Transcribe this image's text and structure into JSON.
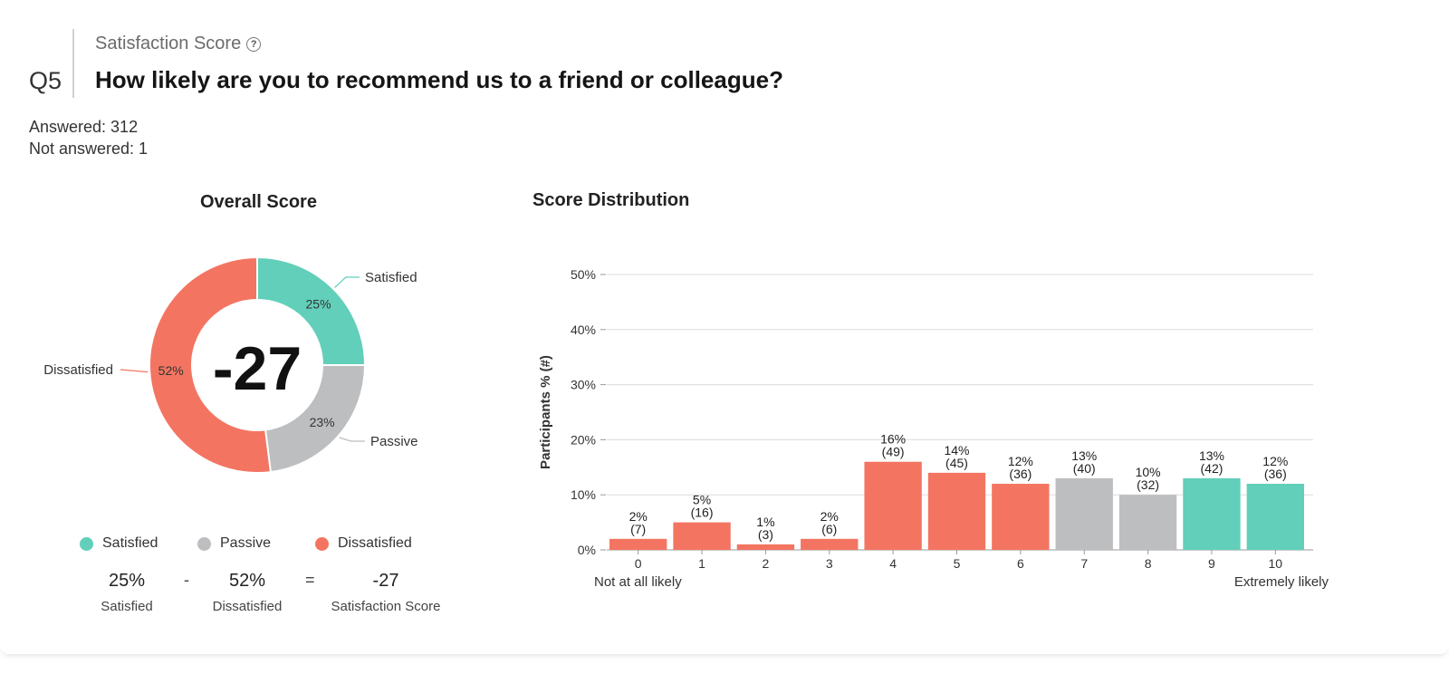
{
  "question": {
    "number": "Q5",
    "category": "Satisfaction Score",
    "title": "How likely are you to recommend us to a friend or colleague?",
    "answered": "Answered: 312",
    "not_answered": "Not answered: 1"
  },
  "overall": {
    "title": "Overall Score",
    "score": "-27",
    "legend": [
      "Satisfied",
      "Passive",
      "Dissatisfied"
    ],
    "calc": {
      "satisfied_value": "25%",
      "satisfied_label": "Satisfied",
      "minus": "-",
      "dissatisfied_value": "52%",
      "dissatisfied_label": "Dissatisfied",
      "equals": "=",
      "score_value": "-27",
      "score_label": "Satisfaction Score"
    }
  },
  "distribution": {
    "title": "Score Distribution",
    "y_label": "Participants % (#)",
    "x_left_note": "Not at all likely",
    "x_right_note": "Extremely likely"
  },
  "colors": {
    "satisfied": "#62cfba",
    "passive": "#bdbec0",
    "dissatisfied": "#f37561"
  },
  "chart_data": [
    {
      "type": "pie",
      "title": "Overall Score",
      "labels": [
        "Satisfied",
        "Passive",
        "Dissatisfied"
      ],
      "values": [
        25,
        23,
        52
      ],
      "value_labels": [
        "25%",
        "23%",
        "52%"
      ],
      "center_text": "-27"
    },
    {
      "type": "bar",
      "title": "Score Distribution",
      "xlabel": "",
      "ylabel": "Participants % (#)",
      "categories": [
        "0",
        "1",
        "2",
        "3",
        "4",
        "5",
        "6",
        "7",
        "8",
        "9",
        "10"
      ],
      "values": [
        2,
        5,
        1,
        2,
        16,
        14,
        12,
        13,
        10,
        13,
        12
      ],
      "counts": [
        7,
        16,
        3,
        6,
        49,
        45,
        36,
        40,
        32,
        42,
        36
      ],
      "groups": [
        "dissatisfied",
        "dissatisfied",
        "dissatisfied",
        "dissatisfied",
        "dissatisfied",
        "dissatisfied",
        "dissatisfied",
        "passive",
        "passive",
        "satisfied",
        "satisfied"
      ],
      "value_labels": [
        "2%",
        "5%",
        "1%",
        "2%",
        "16%",
        "14%",
        "12%",
        "13%",
        "10%",
        "13%",
        "12%"
      ],
      "count_labels": [
        "(7)",
        "(16)",
        "(3)",
        "(6)",
        "(49)",
        "(45)",
        "(36)",
        "(40)",
        "(32)",
        "(42)",
        "(36)"
      ],
      "yticks": [
        "0%",
        "10%",
        "20%",
        "30%",
        "40%",
        "50%"
      ],
      "ylim": [
        0,
        50
      ],
      "grid": true
    }
  ]
}
